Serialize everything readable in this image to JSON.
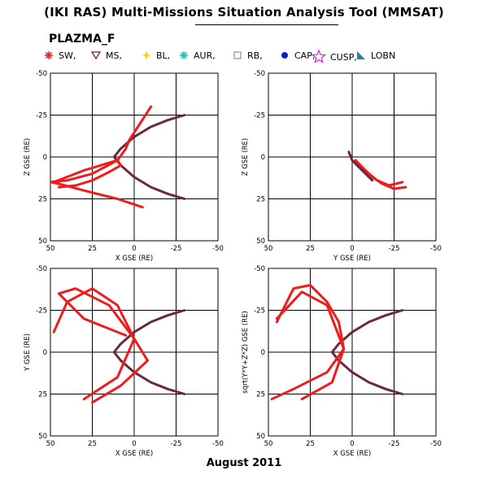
{
  "title": "(IKI RAS) Multi-Missions Situation Analysis Tool (MMSAT)",
  "mission": "PLAZMA_F",
  "footer": "August 2011",
  "legend": [
    {
      "label": "SW,",
      "symbol": "star",
      "color": "#e0202a"
    },
    {
      "label": "MS,",
      "symbol": "triangle-down",
      "color": "#7a1f3d"
    },
    {
      "label": "BL,",
      "symbol": "diamond-star",
      "color": "#ffd400"
    },
    {
      "label": "AUR,",
      "symbol": "asterisk",
      "color": "#11c0c8"
    },
    {
      "label": "RB,",
      "symbol": "square",
      "color": "#8c8c8c"
    },
    {
      "label": "CAP,",
      "symbol": "filled-circle",
      "color": "#0a1fd6"
    },
    {
      "label": "CUSP,",
      "symbol": "big-star",
      "color": "#e21ee0"
    },
    {
      "label": "LOBN",
      "symbol": "wedge",
      "color": "#2f7f96"
    }
  ],
  "chart_data": [
    {
      "type": "line",
      "xlabel": "X GSE (RE)",
      "ylabel": "Z GSE (RE)",
      "xlim": [
        50,
        -50
      ],
      "ylim": [
        -50,
        50
      ],
      "xticks": [
        "50",
        "25",
        "0",
        "-25",
        "-50"
      ],
      "yticks": [
        "-50",
        "-25",
        "0",
        "25",
        "50"
      ],
      "grid": true,
      "series": [
        {
          "name": "MS",
          "color": "#6b2a3a",
          "x": [
            -30,
            -20,
            -10,
            0,
            8,
            12,
            8,
            0,
            -10,
            -20,
            -30
          ],
          "y": [
            25,
            22,
            18,
            12,
            5,
            0,
            -5,
            -12,
            -18,
            -22,
            -25
          ]
        },
        {
          "name": "SW",
          "color": "#ee1c1c",
          "x": [
            -5,
            10,
            30,
            45,
            50,
            40,
            25,
            10,
            5,
            3,
            -10
          ],
          "y": [
            30,
            25,
            20,
            16,
            15,
            14,
            10,
            2,
            -5,
            -10,
            -30
          ]
        },
        {
          "name": "SW",
          "color": "#ee1c1c",
          "x": [
            45,
            35,
            25,
            15,
            8,
            10,
            30,
            48
          ],
          "y": [
            18,
            17,
            14,
            9,
            5,
            2,
            8,
            15
          ]
        }
      ]
    },
    {
      "type": "line",
      "xlabel": "Y GSE (RE)",
      "ylabel": "Z GSE (RE)",
      "xlim": [
        50,
        -50
      ],
      "ylim": [
        -50,
        50
      ],
      "xticks": [
        "50",
        "25",
        "0",
        "-25",
        "-50"
      ],
      "yticks": [
        "-50",
        "-25",
        "0",
        "25",
        "50"
      ],
      "grid": true,
      "series": [
        {
          "name": "SW",
          "color": "#ee1c1c",
          "x": [
            -32,
            -25,
            -18,
            -12,
            -8,
            -4,
            -2
          ],
          "y": [
            18,
            19,
            16,
            12,
            8,
            4,
            2
          ]
        },
        {
          "name": "SW",
          "color": "#ee1c1c",
          "x": [
            -30,
            -22,
            -15,
            -10,
            -5,
            -2
          ],
          "y": [
            15,
            17,
            14,
            10,
            6,
            2
          ]
        },
        {
          "name": "MS",
          "color": "#6b2a3a",
          "x": [
            -12,
            -8,
            -4,
            0,
            2
          ],
          "y": [
            14,
            10,
            6,
            2,
            -3
          ]
        }
      ]
    },
    {
      "type": "line",
      "xlabel": "X GSE (RE)",
      "ylabel": "Y GSE (RE)",
      "xlim": [
        50,
        -50
      ],
      "ylim": [
        -50,
        50
      ],
      "xticks": [
        "50",
        "25",
        "0",
        "-25",
        "-50"
      ],
      "yticks": [
        "-50",
        "-25",
        "0",
        "25",
        "50"
      ],
      "grid": true,
      "series": [
        {
          "name": "MS",
          "color": "#6b2a3a",
          "x": [
            -30,
            -20,
            -10,
            0,
            8,
            12,
            8,
            0,
            -10,
            -20,
            -30
          ],
          "y": [
            -25,
            -22,
            -18,
            -12,
            -5,
            0,
            5,
            12,
            18,
            22,
            25
          ]
        },
        {
          "name": "SW",
          "color": "#ee1c1c",
          "x": [
            5,
            30,
            45,
            35,
            15,
            0,
            -8,
            8,
            25
          ],
          "y": [
            -10,
            -20,
            -35,
            -38,
            -28,
            -8,
            5,
            20,
            30
          ]
        },
        {
          "name": "SW",
          "color": "#ee1c1c",
          "x": [
            48,
            40,
            25,
            10,
            0,
            10,
            30
          ],
          "y": [
            -12,
            -30,
            -38,
            -28,
            -8,
            15,
            28
          ]
        }
      ]
    },
    {
      "type": "line",
      "xlabel": "X GSE (RE)",
      "ylabel": "sqrt(Y*Y+Z*Z) GSE (RE)",
      "xlim": [
        50,
        -50
      ],
      "ylim": [
        -50,
        50
      ],
      "xticks": [
        "50",
        "25",
        "0",
        "-25",
        "-50"
      ],
      "yticks": [
        "-50",
        "-25",
        "0",
        "25",
        "50"
      ],
      "grid": true,
      "series": [
        {
          "name": "MS",
          "color": "#6b2a3a",
          "x": [
            -30,
            -20,
            -10,
            0,
            8,
            12,
            8,
            0,
            -10,
            -20,
            -30
          ],
          "y": [
            -25,
            -22,
            -18,
            -12,
            -5,
            0,
            5,
            12,
            18,
            22,
            25
          ]
        },
        {
          "name": "SW",
          "color": "#ee1c1c",
          "x": [
            45,
            35,
            25,
            15,
            8,
            5,
            15,
            35,
            48
          ],
          "y": [
            -18,
            -38,
            -40,
            -30,
            -18,
            -2,
            12,
            22,
            28
          ]
        },
        {
          "name": "SW",
          "color": "#ee1c1c",
          "x": [
            45,
            30,
            15,
            5,
            12,
            30
          ],
          "y": [
            -20,
            -36,
            -28,
            -2,
            18,
            28
          ]
        }
      ]
    }
  ]
}
